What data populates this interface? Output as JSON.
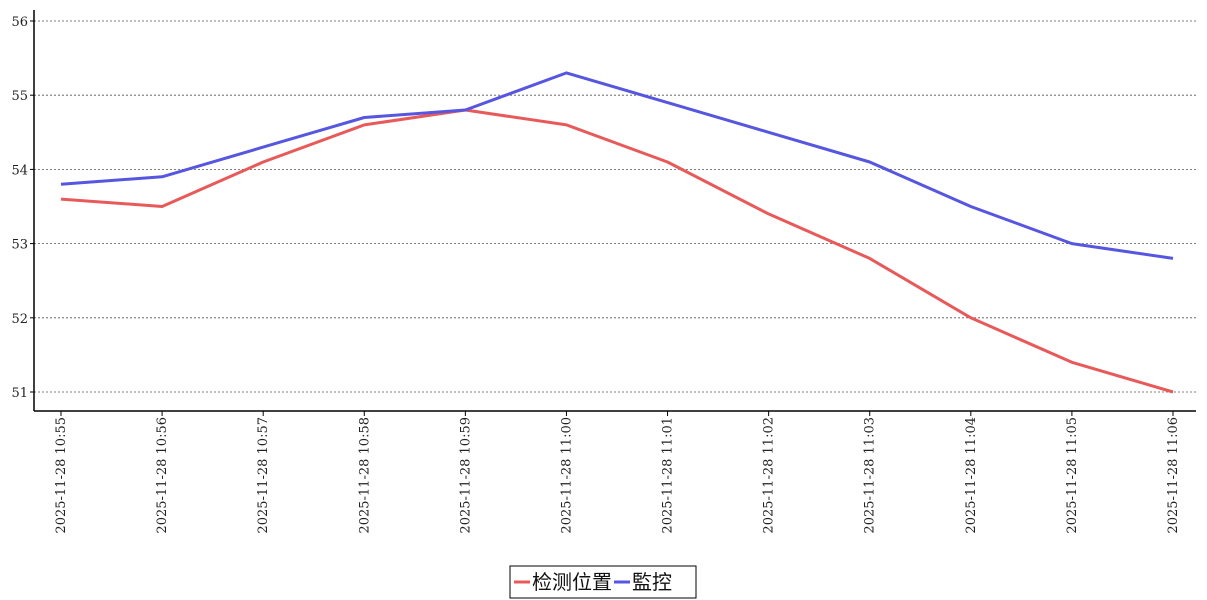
{
  "chart_data": {
    "type": "line",
    "title": "",
    "xlabel": "",
    "ylabel": "",
    "x": [
      "2025-11-28  10:55",
      "2025-11-28  10:56",
      "2025-11-28  10:57",
      "2025-11-28  10:58",
      "2025-11-28  10:59",
      "2025-11-28  11:00",
      "2025-11-28  11:01",
      "2025-11-28  11:02",
      "2025-11-28  11:03",
      "2025-11-28  11:04",
      "2025-11-28  11:05",
      "2025-11-28  11:06"
    ],
    "y_ticks": [
      "51",
      "52",
      "53",
      "54",
      "55",
      "56"
    ],
    "ylim": [
      50.75,
      56.15
    ],
    "grid": "horizontal dotted",
    "legend_position": "bottom-center",
    "series": [
      {
        "name": "检测位置",
        "color": "#e85a5a",
        "values": [
          53.6,
          53.5,
          54.1,
          54.6,
          54.8,
          54.6,
          54.1,
          53.4,
          52.8,
          52.0,
          51.4,
          51.0
        ]
      },
      {
        "name": "監控",
        "color": "#5656e0",
        "values": [
          53.8,
          53.9,
          54.3,
          54.7,
          54.8,
          55.3,
          54.9,
          54.5,
          54.1,
          53.5,
          53.0,
          52.8
        ]
      }
    ]
  }
}
